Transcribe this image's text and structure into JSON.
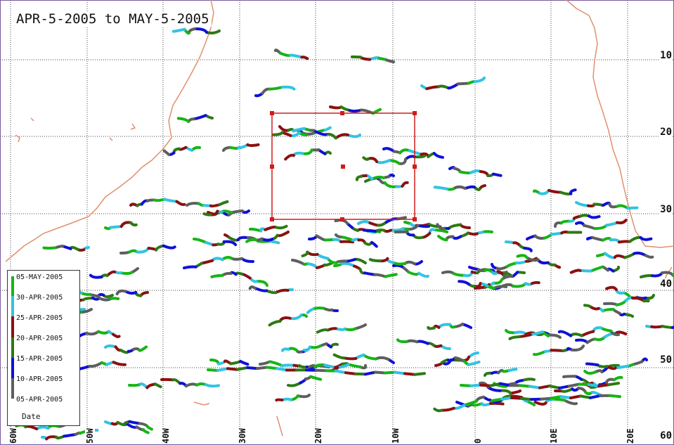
{
  "map": {
    "title": "APR-5-2005 to MAY-5-2005",
    "lat_labels": [
      "10",
      "20",
      "30",
      "40",
      "50",
      "60"
    ],
    "lon_labels": [
      "60W",
      "50W",
      "40W",
      "30W",
      "20W",
      "10W",
      "0",
      "10E",
      "20E"
    ],
    "colors": {
      "grid": "#444444",
      "coast": "#e0906f",
      "box": "#d01c1c",
      "frame": "#7a5aa0"
    },
    "track_colors": [
      "#15b515",
      "#32c3e3",
      "#8b1010",
      "#2d7a14",
      "#1010d8",
      "#5e5e5e"
    ]
  },
  "legend": {
    "caption": "Date",
    "items": [
      {
        "label": "05-MAY-2005",
        "color": "#15b515"
      },
      {
        "label": "30-APR-2005",
        "color": "#32c3e3"
      },
      {
        "label": "25-APR-2005",
        "color": "#8b1010"
      },
      {
        "label": "20-APR-2005",
        "color": "#2d7a14"
      },
      {
        "label": "15-APR-2005",
        "color": "#1010d8"
      },
      {
        "label": "10-APR-2005",
        "color": "#5e5e5e"
      },
      {
        "label": "05-APR-2005",
        "color": "#5e5e5e"
      }
    ]
  }
}
